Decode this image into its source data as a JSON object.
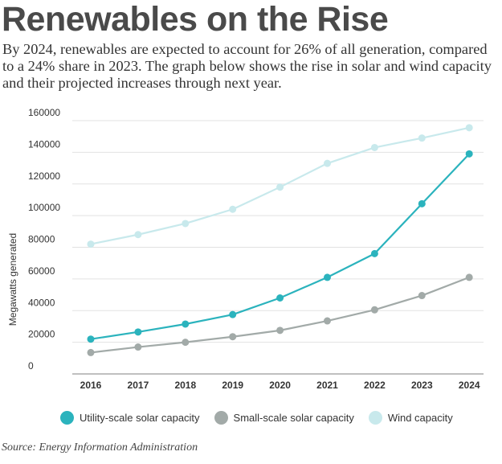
{
  "header": {
    "title": "Renewables on the Rise",
    "subtitle": "By 2024, renewables are expected to account for 26% of all generation, compared to a 24% share in 2023. The graph below shows the rise in solar and wind capacity and their projected increases through next year."
  },
  "source": "Source: Energy Information Administration",
  "chart_data": {
    "type": "line",
    "title": "Renewables on the Rise",
    "xlabel": "",
    "ylabel": "Megawatts generated",
    "ylim": [
      0,
      160000
    ],
    "y_ticks": [
      0,
      20000,
      40000,
      60000,
      80000,
      100000,
      120000,
      140000,
      160000
    ],
    "grid": true,
    "legend_position": "bottom",
    "categories": [
      "2016",
      "2017",
      "2018",
      "2019",
      "2020",
      "2021",
      "2022",
      "2023",
      "2024"
    ],
    "series": [
      {
        "name": "Utility-scale solar capacity",
        "color": "#2bb3bd",
        "values": [
          22000,
          26500,
          31500,
          37500,
          48000,
          61000,
          76000,
          107500,
          139000
        ]
      },
      {
        "name": "Small-scale solar capacity",
        "color": "#a2aaa8",
        "values": [
          13500,
          17000,
          20000,
          23500,
          27500,
          33500,
          40500,
          49500,
          61000
        ]
      },
      {
        "name": "Wind capacity",
        "color": "#c8e9ec",
        "values": [
          82000,
          88000,
          95000,
          104000,
          118000,
          133000,
          143000,
          149000,
          155500
        ]
      }
    ]
  }
}
